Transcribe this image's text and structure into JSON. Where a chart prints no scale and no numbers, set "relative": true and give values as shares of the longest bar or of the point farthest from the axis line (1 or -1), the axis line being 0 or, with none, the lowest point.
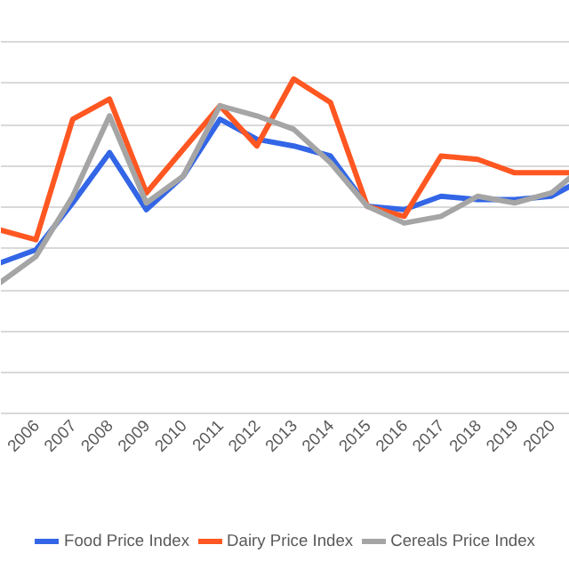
{
  "chart_data": {
    "type": "line",
    "relative": true,
    "categories": [
      null,
      "2006",
      "2007",
      "2008",
      "2009",
      "2010",
      "2011",
      "2012",
      "2013",
      "2014",
      "2015",
      "2016",
      "2017",
      "2018",
      "2019",
      "2020",
      null
    ],
    "series": [
      {
        "name": "Food Price Index",
        "color": "#3366e6",
        "values": [
          0.45,
          0.49,
          0.63,
          0.78,
          0.61,
          0.71,
          0.88,
          0.82,
          0.8,
          0.77,
          0.62,
          0.61,
          0.65,
          0.64,
          0.64,
          0.65,
          0.71
        ]
      },
      {
        "name": "Dairy Price Index",
        "color": "#ff5722",
        "values": [
          0.55,
          0.52,
          0.88,
          0.94,
          0.66,
          0.79,
          0.92,
          0.8,
          1.0,
          0.93,
          0.62,
          0.59,
          0.77,
          0.76,
          0.72,
          0.72,
          0.72
        ]
      },
      {
        "name": "Cereals Price Index",
        "color": "#a5a5a5",
        "values": [
          0.39,
          0.47,
          0.65,
          0.89,
          0.63,
          0.71,
          0.92,
          0.89,
          0.85,
          0.75,
          0.62,
          0.57,
          0.59,
          0.65,
          0.63,
          0.66,
          0.75
        ]
      }
    ],
    "grid": "y",
    "legend": "bottom",
    "line_style": "solid"
  }
}
